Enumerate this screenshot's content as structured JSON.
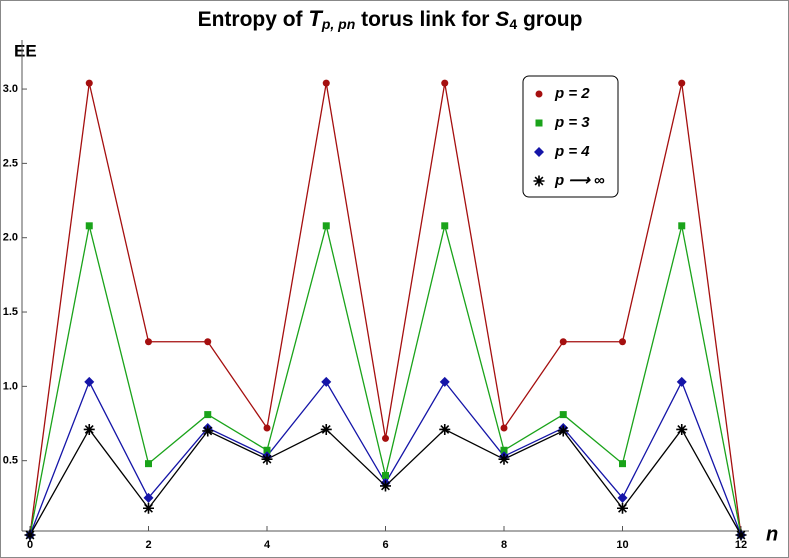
{
  "chart_data": {
    "type": "line",
    "title_parts": [
      "Entropy of ",
      "T",
      "p, pn",
      " torus link for ",
      "S",
      "4",
      " group"
    ],
    "y_label": "EE",
    "x_label": "n",
    "x": [
      0,
      1,
      2,
      3,
      4,
      5,
      6,
      7,
      8,
      9,
      10,
      11,
      12
    ],
    "series": [
      {
        "name": "p = 2",
        "color": "#a50f0f",
        "marker": "circle",
        "values": [
          0,
          3.04,
          1.3,
          1.3,
          0.72,
          3.04,
          0.65,
          3.04,
          0.72,
          1.3,
          1.3,
          3.04,
          0
        ]
      },
      {
        "name": "p = 3",
        "color": "#1aa31a",
        "marker": "square",
        "values": [
          0,
          2.08,
          0.48,
          0.81,
          0.57,
          2.08,
          0.4,
          2.08,
          0.57,
          0.81,
          0.48,
          2.08,
          0
        ]
      },
      {
        "name": "p = 4",
        "color": "#1515a8",
        "marker": "diamond",
        "values": [
          0,
          1.03,
          0.25,
          0.72,
          0.53,
          1.03,
          0.35,
          1.03,
          0.53,
          0.72,
          0.25,
          1.03,
          0
        ]
      },
      {
        "name": "p ⟶ ∞",
        "color": "#000000",
        "marker": "star",
        "values": [
          0,
          0.71,
          0.18,
          0.7,
          0.51,
          0.71,
          0.33,
          0.71,
          0.51,
          0.7,
          0.18,
          0.71,
          0
        ]
      }
    ],
    "xlim": [
      0,
      12
    ],
    "ylim": [
      0,
      3.33
    ],
    "xticks": [
      0,
      2,
      4,
      6,
      8,
      10,
      12
    ],
    "yticks": [
      {
        "value": 0.5,
        "label": "0.5"
      },
      {
        "value": 1,
        "label": "1.0"
      },
      {
        "value": 1.5,
        "label": "1.5"
      },
      {
        "value": 2,
        "label": "2.0"
      },
      {
        "value": 2.5,
        "label": "2.5"
      },
      {
        "value": 3,
        "label": "3.0"
      }
    ],
    "legend": "top-right"
  }
}
